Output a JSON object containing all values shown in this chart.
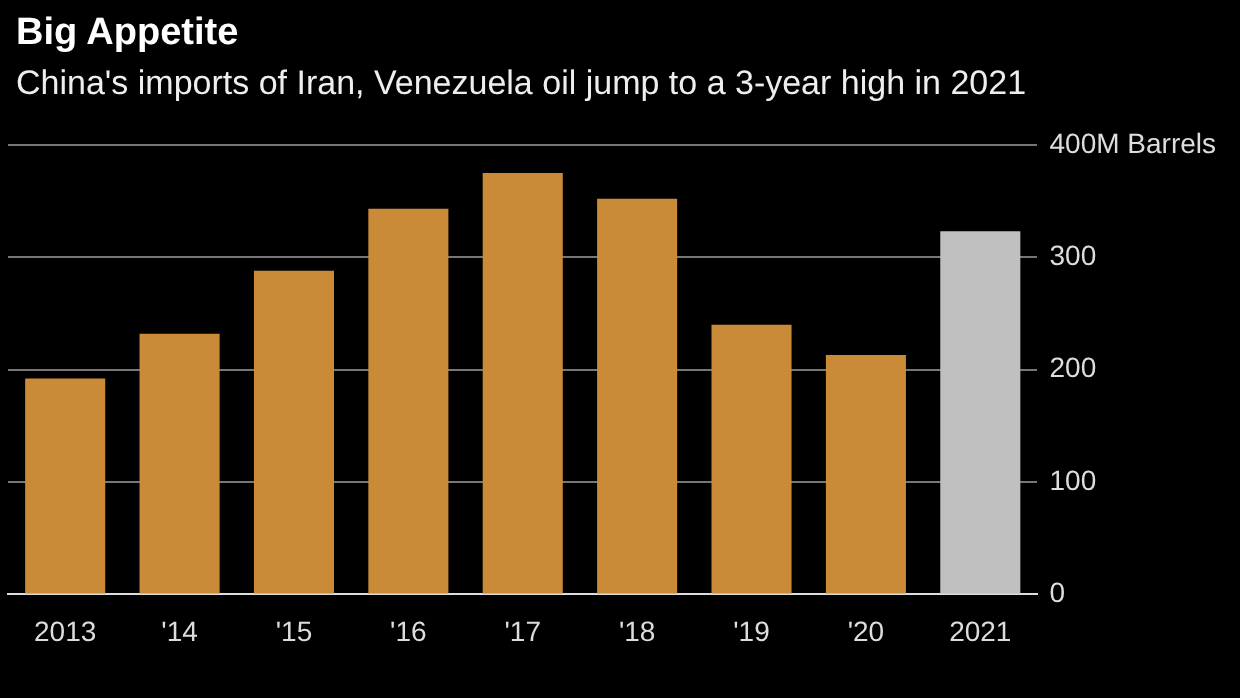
{
  "chart_data": {
    "type": "bar",
    "title": "Big Appetite",
    "subtitle": "China's imports of Iran, Venezuela oil jump to a 3-year high in 2021",
    "categories": [
      "2013",
      "'14",
      "'15",
      "'16",
      "'17",
      "'18",
      "'19",
      "'20",
      "2021"
    ],
    "values": [
      192,
      232,
      288,
      343,
      375,
      352,
      240,
      213,
      323
    ],
    "colors": [
      "#c98b38",
      "#c98b38",
      "#c98b38",
      "#c98b38",
      "#c98b38",
      "#c98b38",
      "#c98b38",
      "#c98b38",
      "#c0c0c0"
    ],
    "ylim": [
      0,
      400
    ],
    "yticks": [
      0,
      100,
      200,
      300,
      {
        "value": 400,
        "label": "400M Barrels"
      }
    ],
    "grid": "y",
    "legend": false
  }
}
